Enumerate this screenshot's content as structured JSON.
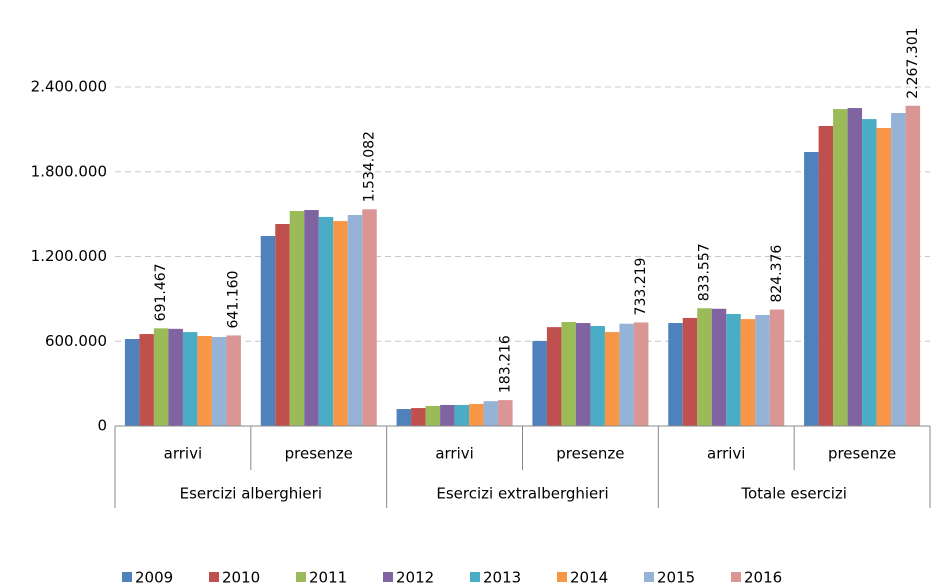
{
  "chart_data": {
    "type": "bar",
    "categories": [
      "arrivi",
      "presenze",
      "arrivi",
      "presenze",
      "arrivi",
      "presenze"
    ],
    "category_groups": [
      "Esercizi alberghieri",
      "Esercizi extralberghieri",
      "Totale esercizi"
    ],
    "ylim": [
      0,
      2400000
    ],
    "yticks": [
      0,
      {
        "value": 600000,
        "label": "600.000"
      },
      {
        "value": 1200000,
        "label": "1.200.000"
      },
      {
        "value": 1800000,
        "label": "1.800.000"
      },
      {
        "value": 2400000,
        "label": "2.400.000"
      }
    ],
    "grid": true,
    "legend": "bottom",
    "series": [
      {
        "name": "2009",
        "color": "#4f81bd",
        "values": [
          616000,
          1345000,
          120000,
          602000,
          729000,
          1940000
        ]
      },
      {
        "name": "2010",
        "color": "#c0504d",
        "values": [
          651000,
          1430000,
          127000,
          700000,
          765000,
          2124000
        ]
      },
      {
        "name": "2011",
        "color": "#9bbb59",
        "values": [
          691467,
          1522000,
          142000,
          736000,
          833557,
          2244000
        ],
        "value_labels": [
          "691.467",
          null,
          null,
          null,
          "833.557",
          null
        ]
      },
      {
        "name": "2012",
        "color": "#8064a2",
        "values": [
          688000,
          1529000,
          149000,
          729000,
          830000,
          2251000
        ]
      },
      {
        "name": "2013",
        "color": "#4bacc6",
        "values": [
          665000,
          1480000,
          149000,
          708000,
          793000,
          2173000
        ]
      },
      {
        "name": "2014",
        "color": "#f79646",
        "values": [
          637000,
          1451000,
          156000,
          665000,
          757000,
          2110000
        ]
      },
      {
        "name": "2015",
        "color": "#95b3d7",
        "values": [
          630000,
          1494000,
          176000,
          724000,
          786000,
          2216000
        ]
      },
      {
        "name": "2016",
        "color": "#d99694",
        "values": [
          641160,
          1534082,
          183216,
          733219,
          824376,
          2267301
        ],
        "value_labels": [
          "641.160",
          "1.534.082",
          "183.216",
          "733.219",
          "824.376",
          "2.267.301"
        ]
      }
    ]
  }
}
